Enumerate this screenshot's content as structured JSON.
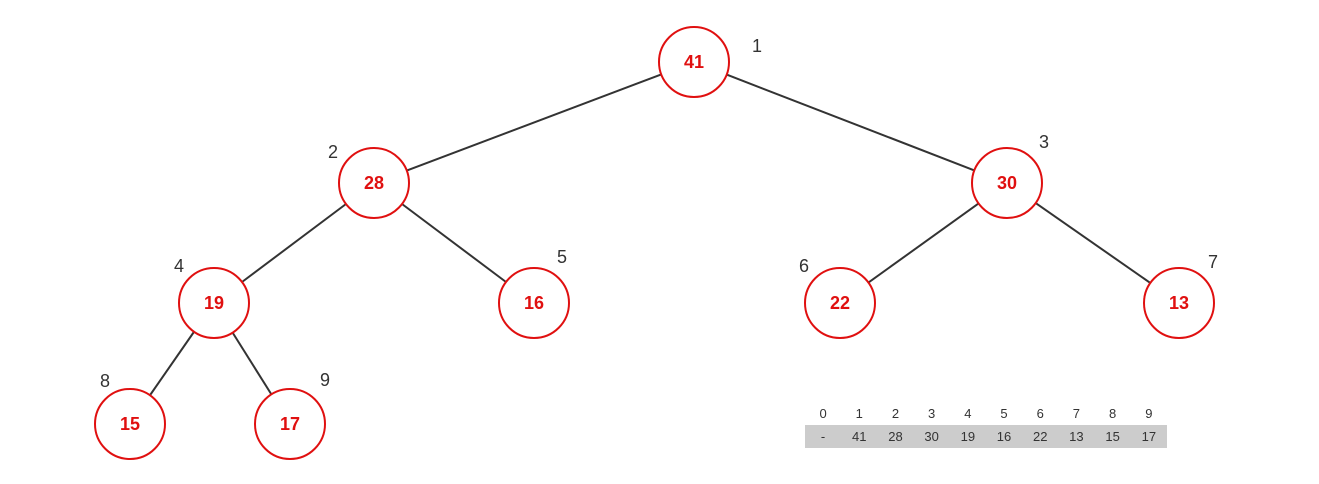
{
  "heap": {
    "nodes": [
      {
        "index": "1",
        "value": "41"
      },
      {
        "index": "2",
        "value": "28"
      },
      {
        "index": "3",
        "value": "30"
      },
      {
        "index": "4",
        "value": "19"
      },
      {
        "index": "5",
        "value": "16"
      },
      {
        "index": "6",
        "value": "22"
      },
      {
        "index": "7",
        "value": "13"
      },
      {
        "index": "8",
        "value": "15"
      },
      {
        "index": "9",
        "value": "17"
      }
    ],
    "edges": [
      [
        1,
        2
      ],
      [
        1,
        3
      ],
      [
        2,
        4
      ],
      [
        2,
        5
      ],
      [
        3,
        6
      ],
      [
        3,
        7
      ],
      [
        4,
        8
      ],
      [
        4,
        9
      ]
    ],
    "colors": {
      "node_border": "#e01010",
      "node_text": "#e01010",
      "edge": "#333333",
      "array_bg": "#cccccc"
    }
  },
  "array": {
    "indices": [
      "0",
      "1",
      "2",
      "3",
      "4",
      "5",
      "6",
      "7",
      "8",
      "9"
    ],
    "values": [
      "-",
      "41",
      "28",
      "30",
      "19",
      "16",
      "22",
      "13",
      "15",
      "17"
    ]
  }
}
